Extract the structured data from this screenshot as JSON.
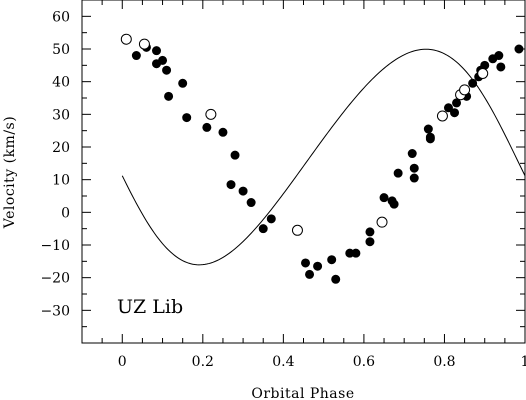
{
  "chart_data": {
    "type": "scatter",
    "title": "",
    "xlabel": "Orbital Phase",
    "ylabel": "Velocity (km/s)",
    "xlim": [
      -0.1,
      1.0
    ],
    "ylim": [
      -40,
      65
    ],
    "x_ticks": [
      0,
      0.2,
      0.4,
      0.6,
      0.8,
      1
    ],
    "x_tick_labels": [
      "0",
      "0.2",
      "0.4",
      "0.6",
      "0.8",
      "1"
    ],
    "y_ticks": [
      -30,
      -20,
      -10,
      0,
      10,
      20,
      30,
      40,
      50,
      60
    ],
    "y_tick_labels": [
      "−30",
      "−20",
      "−10",
      "0",
      "10",
      "20",
      "30",
      "40",
      "50",
      "60"
    ],
    "annotation": "UZ Lib",
    "grid": false,
    "legend": "none",
    "series": [
      {
        "marker": "filled-circle",
        "points": [
          [
            0.035,
            48
          ],
          [
            0.06,
            50.5
          ],
          [
            0.085,
            49.5
          ],
          [
            0.085,
            45.5
          ],
          [
            0.1,
            46.5
          ],
          [
            0.11,
            43.5
          ],
          [
            0.115,
            35.5
          ],
          [
            0.15,
            39.5
          ],
          [
            0.16,
            29
          ],
          [
            0.21,
            26
          ],
          [
            0.25,
            24.5
          ],
          [
            0.27,
            8.5
          ],
          [
            0.28,
            17.5
          ],
          [
            0.3,
            6.5
          ],
          [
            0.32,
            3
          ],
          [
            0.35,
            -5
          ],
          [
            0.37,
            -2
          ],
          [
            0.455,
            -15.5
          ],
          [
            0.465,
            -19
          ],
          [
            0.485,
            -16.5
          ],
          [
            0.52,
            -14.5
          ],
          [
            0.53,
            -20.5
          ],
          [
            0.565,
            -12.5
          ],
          [
            0.58,
            -12.5
          ],
          [
            0.615,
            -9
          ],
          [
            0.615,
            -6
          ],
          [
            0.65,
            4.5
          ],
          [
            0.67,
            3.5
          ],
          [
            0.675,
            2.5
          ],
          [
            0.685,
            12
          ],
          [
            0.72,
            18
          ],
          [
            0.725,
            10.5
          ],
          [
            0.725,
            13.5
          ],
          [
            0.76,
            25.5
          ],
          [
            0.765,
            23
          ],
          [
            0.765,
            22.5
          ],
          [
            0.81,
            32
          ],
          [
            0.825,
            30.5
          ],
          [
            0.83,
            33.5
          ],
          [
            0.855,
            35.5
          ],
          [
            0.87,
            39.5
          ],
          [
            0.885,
            41.5
          ],
          [
            0.89,
            43.5
          ],
          [
            0.9,
            45
          ],
          [
            0.92,
            47
          ],
          [
            0.935,
            48
          ],
          [
            0.94,
            44.5
          ],
          [
            0.985,
            50
          ]
        ]
      },
      {
        "marker": "open-circle",
        "points": [
          [
            0.01,
            53
          ],
          [
            0.055,
            51.5
          ],
          [
            0.22,
            30
          ],
          [
            0.435,
            -5.5
          ],
          [
            0.645,
            -3
          ],
          [
            0.795,
            29.5
          ],
          [
            0.84,
            36
          ],
          [
            0.85,
            37.5
          ],
          [
            0.895,
            42.5
          ]
        ]
      }
    ],
    "fit_curve": {
      "gamma": 17.5,
      "K": 33,
      "e": 0.1,
      "omega_deg": 100,
      "T0_phase": 0.0
    }
  }
}
